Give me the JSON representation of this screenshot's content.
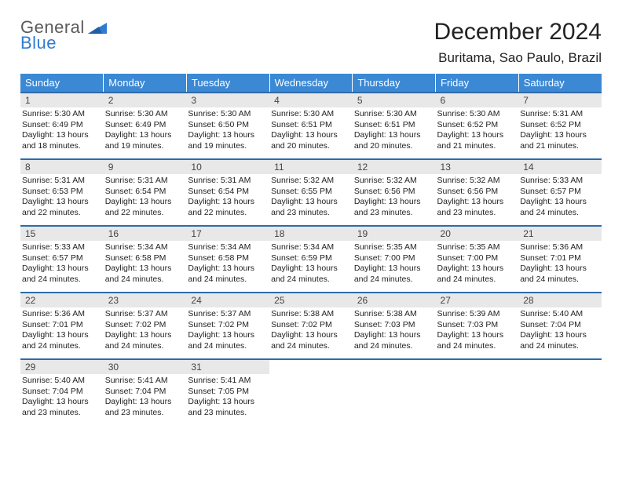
{
  "logo": {
    "line1": "General",
    "line2": "Blue"
  },
  "title": "December 2024",
  "location": "Buritama, Sao Paulo, Brazil",
  "colors": {
    "header_bg": "#3b88d4",
    "row_border": "#2e6ba8",
    "daynum_bg": "#e8e8e8",
    "logo_blue": "#2e7cd1",
    "logo_gray": "#5a5a5a"
  },
  "weekdays": [
    "Sunday",
    "Monday",
    "Tuesday",
    "Wednesday",
    "Thursday",
    "Friday",
    "Saturday"
  ],
  "days": [
    {
      "n": 1,
      "sr": "5:30 AM",
      "ss": "6:49 PM",
      "dl": "13 hours and 18 minutes."
    },
    {
      "n": 2,
      "sr": "5:30 AM",
      "ss": "6:49 PM",
      "dl": "13 hours and 19 minutes."
    },
    {
      "n": 3,
      "sr": "5:30 AM",
      "ss": "6:50 PM",
      "dl": "13 hours and 19 minutes."
    },
    {
      "n": 4,
      "sr": "5:30 AM",
      "ss": "6:51 PM",
      "dl": "13 hours and 20 minutes."
    },
    {
      "n": 5,
      "sr": "5:30 AM",
      "ss": "6:51 PM",
      "dl": "13 hours and 20 minutes."
    },
    {
      "n": 6,
      "sr": "5:30 AM",
      "ss": "6:52 PM",
      "dl": "13 hours and 21 minutes."
    },
    {
      "n": 7,
      "sr": "5:31 AM",
      "ss": "6:52 PM",
      "dl": "13 hours and 21 minutes."
    },
    {
      "n": 8,
      "sr": "5:31 AM",
      "ss": "6:53 PM",
      "dl": "13 hours and 22 minutes."
    },
    {
      "n": 9,
      "sr": "5:31 AM",
      "ss": "6:54 PM",
      "dl": "13 hours and 22 minutes."
    },
    {
      "n": 10,
      "sr": "5:31 AM",
      "ss": "6:54 PM",
      "dl": "13 hours and 22 minutes."
    },
    {
      "n": 11,
      "sr": "5:32 AM",
      "ss": "6:55 PM",
      "dl": "13 hours and 23 minutes."
    },
    {
      "n": 12,
      "sr": "5:32 AM",
      "ss": "6:56 PM",
      "dl": "13 hours and 23 minutes."
    },
    {
      "n": 13,
      "sr": "5:32 AM",
      "ss": "6:56 PM",
      "dl": "13 hours and 23 minutes."
    },
    {
      "n": 14,
      "sr": "5:33 AM",
      "ss": "6:57 PM",
      "dl": "13 hours and 24 minutes."
    },
    {
      "n": 15,
      "sr": "5:33 AM",
      "ss": "6:57 PM",
      "dl": "13 hours and 24 minutes."
    },
    {
      "n": 16,
      "sr": "5:34 AM",
      "ss": "6:58 PM",
      "dl": "13 hours and 24 minutes."
    },
    {
      "n": 17,
      "sr": "5:34 AM",
      "ss": "6:58 PM",
      "dl": "13 hours and 24 minutes."
    },
    {
      "n": 18,
      "sr": "5:34 AM",
      "ss": "6:59 PM",
      "dl": "13 hours and 24 minutes."
    },
    {
      "n": 19,
      "sr": "5:35 AM",
      "ss": "7:00 PM",
      "dl": "13 hours and 24 minutes."
    },
    {
      "n": 20,
      "sr": "5:35 AM",
      "ss": "7:00 PM",
      "dl": "13 hours and 24 minutes."
    },
    {
      "n": 21,
      "sr": "5:36 AM",
      "ss": "7:01 PM",
      "dl": "13 hours and 24 minutes."
    },
    {
      "n": 22,
      "sr": "5:36 AM",
      "ss": "7:01 PM",
      "dl": "13 hours and 24 minutes."
    },
    {
      "n": 23,
      "sr": "5:37 AM",
      "ss": "7:02 PM",
      "dl": "13 hours and 24 minutes."
    },
    {
      "n": 24,
      "sr": "5:37 AM",
      "ss": "7:02 PM",
      "dl": "13 hours and 24 minutes."
    },
    {
      "n": 25,
      "sr": "5:38 AM",
      "ss": "7:02 PM",
      "dl": "13 hours and 24 minutes."
    },
    {
      "n": 26,
      "sr": "5:38 AM",
      "ss": "7:03 PM",
      "dl": "13 hours and 24 minutes."
    },
    {
      "n": 27,
      "sr": "5:39 AM",
      "ss": "7:03 PM",
      "dl": "13 hours and 24 minutes."
    },
    {
      "n": 28,
      "sr": "5:40 AM",
      "ss": "7:04 PM",
      "dl": "13 hours and 24 minutes."
    },
    {
      "n": 29,
      "sr": "5:40 AM",
      "ss": "7:04 PM",
      "dl": "13 hours and 23 minutes."
    },
    {
      "n": 30,
      "sr": "5:41 AM",
      "ss": "7:04 PM",
      "dl": "13 hours and 23 minutes."
    },
    {
      "n": 31,
      "sr": "5:41 AM",
      "ss": "7:05 PM",
      "dl": "13 hours and 23 minutes."
    }
  ],
  "labels": {
    "sunrise": "Sunrise:",
    "sunset": "Sunset:",
    "daylight": "Daylight:"
  },
  "layout": {
    "start_weekday": 0,
    "weeks": 5,
    "trailing_empty": 4
  }
}
